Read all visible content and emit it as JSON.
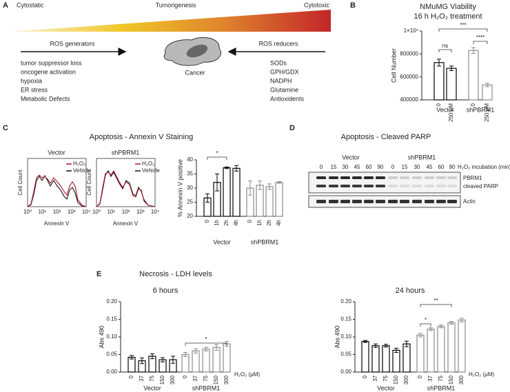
{
  "panel_labels": [
    "A",
    "B",
    "C",
    "D",
    "E"
  ],
  "panel_a": {
    "gradient_labels": [
      "Cytostatic",
      "Tumorigenesis",
      "Cytotoxic"
    ],
    "generators": {
      "title": "ROS generators",
      "items": [
        "tumor suppressor loss",
        "oncogene activation",
        "hypoxia",
        "ER stress",
        "Metabolic Defects"
      ]
    },
    "cell_label": "Cancer",
    "reducers": {
      "title": "ROS reducers",
      "items": [
        "SODs",
        "GPH/GDX",
        "NADPH",
        "Glutamine",
        "Antioxidents"
      ]
    }
  },
  "panel_c": {
    "title": "Apoptosis - Annexin V Staining",
    "plots": [
      "Vector",
      "shPBRM1"
    ],
    "legend": [
      "H₂O₂",
      "Vehicle"
    ],
    "ylabel": "Cell Count",
    "xlabel": "Annexin V",
    "xticks": [
      "10⁰",
      "10¹",
      "10²",
      "10³",
      "10⁴"
    ]
  },
  "panel_d": {
    "title": "Apoptosis - Cleaved PARP",
    "groups": [
      "Vector",
      "shPBRM1"
    ],
    "times": [
      0,
      15,
      30,
      45,
      60,
      90,
      0,
      15,
      30,
      45,
      60,
      90
    ],
    "time_label": "H₂O₂ incubation (min)",
    "bands": [
      "PBRM1",
      "cleaved PARP",
      "Actin"
    ]
  },
  "panel_e": {
    "title": "Necrosis - LDH levels"
  },
  "chart_data": [
    {
      "type": "bar",
      "title": "NMuMG Viability",
      "subtitle": "16 h H₂O₂ treatment",
      "ylabel": "Cell Number",
      "categories": [
        "0",
        "250 μM",
        "0",
        "250 μM"
      ],
      "groups": [
        "Vector",
        "shPBRM1"
      ],
      "values": [
        725000,
        675000,
        830000,
        530000
      ],
      "errors": [
        30000,
        20000,
        25000,
        15000
      ],
      "color": "#ffffff",
      "edge_colors": [
        "#000000",
        "#8a8a8a"
      ],
      "ylim": [
        400000,
        1000000
      ],
      "yticks": [
        400000,
        600000,
        800000,
        {
          "value": 1000000,
          "label": "1×10⁶"
        }
      ],
      "annotations": [
        "ns",
        "****",
        "***"
      ]
    },
    {
      "type": "bar",
      "ylabel": "% Annexin V positive",
      "categories": [
        "0",
        "1h",
        "2h",
        "4h",
        "0",
        "1h",
        "2h",
        "4h"
      ],
      "groups": [
        "Vector",
        "shPBRM1"
      ],
      "values": [
        26.5,
        32,
        37.2,
        37,
        30,
        31,
        30.5,
        32
      ],
      "errors": [
        1.5,
        3,
        0.3,
        1,
        2.5,
        1.5,
        1,
        0.3
      ],
      "color": "#ffffff",
      "edge_colors": [
        "#000000",
        "#8a8a8a"
      ],
      "ylim": [
        20,
        40
      ],
      "yticks": [
        20,
        25,
        30,
        35,
        40
      ],
      "annotations": [
        "*"
      ]
    },
    {
      "type": "bar",
      "title": "6 hours",
      "ylabel": "Abs 490",
      "xlabel": "H₂O₂ (μM)",
      "categories": [
        "0",
        "37",
        "75",
        "150",
        "300",
        "0",
        "37",
        "75",
        "150",
        "300"
      ],
      "groups": [
        "Vector",
        "shPBRM1"
      ],
      "values": [
        0.042,
        0.032,
        0.045,
        0.035,
        0.035,
        0.05,
        0.06,
        0.065,
        0.07,
        0.08
      ],
      "errors": [
        0.005,
        0.008,
        0.007,
        0.006,
        0.01,
        0.006,
        0.006,
        0.005,
        0.008,
        0.007
      ],
      "color": "#ffffff",
      "edge_colors": [
        "#000000",
        "#8a8a8a"
      ],
      "ylim": [
        0,
        0.2
      ],
      "yticks": [
        {
          "value": 0,
          "label": "0.00"
        },
        0.05,
        {
          "value": 0.1,
          "label": "0.10"
        },
        0.15,
        {
          "value": 0.2,
          "label": "0.20"
        }
      ],
      "annotations": [
        "*"
      ]
    },
    {
      "type": "bar",
      "title": "24 hours",
      "ylabel": "Abs 490",
      "xlabel": "H₂O₂ (μM)",
      "categories": [
        "0",
        "37",
        "75",
        "150",
        "300",
        "0",
        "37",
        "75",
        "150",
        "300"
      ],
      "groups": [
        "Vector",
        "shPBRM1"
      ],
      "values": [
        0.087,
        0.075,
        0.075,
        0.062,
        0.08,
        0.105,
        0.122,
        0.13,
        0.14,
        0.148
      ],
      "errors": [
        0.003,
        0.005,
        0.004,
        0.006,
        0.008,
        0.005,
        0.004,
        0.004,
        0.004,
        0.005
      ],
      "color": "#ffffff",
      "edge_colors": [
        "#000000",
        "#8a8a8a"
      ],
      "ylim": [
        0,
        0.2
      ],
      "yticks": [
        {
          "value": 0,
          "label": "0.00"
        },
        0.05,
        {
          "value": 0.1,
          "label": "0.10"
        },
        0.15,
        {
          "value": 0.2,
          "label": "0.20"
        }
      ],
      "annotations": [
        "*",
        "**"
      ]
    }
  ]
}
